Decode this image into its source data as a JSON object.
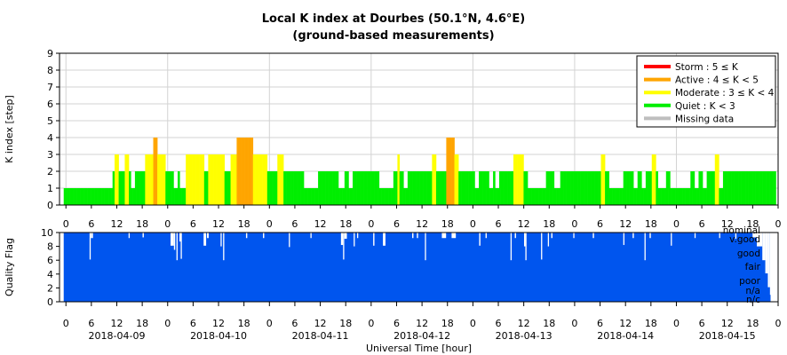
{
  "title": "Local K index at Dourbes (50.1°N, 4.6°E)",
  "subtitle": "(ground-based measurements)",
  "chart_data": [
    {
      "type": "bar",
      "panel": "k-index",
      "ylabel": "K index [step]",
      "ylim": [
        0,
        9
      ],
      "yticks": [
        "0",
        "1",
        "2",
        "3",
        "4",
        "5",
        "6",
        "7",
        "8",
        "9"
      ],
      "x_start": "2018-04-09T00:00",
      "x_span_hours": 168,
      "x_tick_labels": [
        "0",
        "6",
        "12",
        "18",
        "0",
        "6",
        "12",
        "18",
        "0",
        "6",
        "12",
        "18",
        "0",
        "6",
        "12",
        "18",
        "0",
        "6",
        "12",
        "18",
        "0",
        "6",
        "12",
        "18",
        "0",
        "6",
        "12",
        "18",
        "0"
      ],
      "interval_minutes": 15,
      "values": [
        [
          1,
          1,
          1,
          1,
          1,
          1,
          1,
          1,
          1,
          1,
          1,
          1,
          1,
          1,
          1,
          1,
          1,
          1,
          1,
          1,
          1,
          1,
          1,
          1,
          1,
          1,
          1,
          1,
          1,
          1,
          1,
          1,
          1,
          1,
          1,
          1,
          1,
          1,
          1,
          1,
          1,
          1,
          1,
          1,
          1,
          1,
          1,
          1,
          2,
          2,
          3,
          3,
          3,
          3,
          2,
          2,
          2,
          2,
          2,
          2,
          3,
          3,
          3,
          3,
          2,
          2,
          1,
          1,
          1,
          1,
          2,
          2,
          2,
          2,
          2,
          2,
          2,
          2,
          2,
          2,
          3,
          3,
          3,
          3,
          3,
          3,
          3,
          3,
          4,
          4,
          4,
          4,
          3,
          3,
          3,
          3,
          3,
          3,
          3,
          3
        ],
        [
          2,
          2,
          2,
          2,
          2,
          2,
          2,
          2,
          1,
          1,
          1,
          1,
          2,
          2,
          1,
          1,
          1,
          1,
          1,
          1,
          3,
          3,
          3,
          3,
          3,
          3,
          3,
          3,
          3,
          3,
          3,
          3,
          3,
          3,
          3,
          3,
          3,
          3,
          2,
          2,
          2,
          2,
          3,
          3,
          3,
          3,
          3,
          3,
          3,
          3,
          3,
          3,
          3,
          3,
          3,
          3,
          3,
          3,
          2,
          2,
          2,
          2,
          2,
          2,
          3,
          3,
          3,
          3,
          3,
          3,
          4,
          4,
          4,
          4,
          4,
          4,
          4,
          4,
          4,
          4,
          4,
          4,
          4,
          4,
          4,
          4,
          3,
          3,
          3,
          3,
          3,
          3,
          3,
          3,
          3,
          3,
          3,
          3,
          3,
          3
        ],
        [
          2,
          2,
          2,
          2,
          2,
          2,
          2,
          2,
          2,
          2,
          3,
          3,
          3,
          3,
          3,
          3,
          2,
          2,
          2,
          2,
          2,
          2,
          2,
          2,
          2,
          2,
          2,
          2,
          2,
          2,
          2,
          2,
          2,
          2,
          2,
          2,
          1,
          1,
          1,
          1,
          1,
          1,
          1,
          1,
          1,
          1,
          1,
          1,
          1,
          1,
          2,
          2,
          2,
          2,
          2,
          2,
          2,
          2,
          2,
          2,
          2,
          2,
          2,
          2,
          2,
          2,
          2,
          2,
          2,
          2,
          1,
          1,
          1,
          1,
          1,
          1,
          2,
          2,
          2,
          2,
          1,
          1,
          1,
          1,
          2,
          2,
          2,
          2,
          2,
          2,
          2,
          2,
          2,
          2,
          2,
          2,
          2,
          2,
          2,
          2
        ],
        [
          2,
          2,
          2,
          2,
          2,
          2,
          2,
          2,
          2,
          2,
          1,
          1,
          1,
          1,
          1,
          1,
          1,
          1,
          1,
          1,
          1,
          1,
          1,
          1,
          2,
          2,
          2,
          2,
          3,
          3,
          2,
          2,
          2,
          2,
          1,
          1,
          1,
          1,
          2,
          2,
          2,
          2,
          2,
          2,
          2,
          2,
          2,
          2,
          2,
          2,
          2,
          2,
          2,
          2,
          2,
          2,
          2,
          2,
          2,
          2,
          2,
          2,
          3,
          3,
          3,
          3,
          2,
          2,
          2,
          2,
          2,
          2,
          2,
          2,
          2,
          2,
          4,
          4,
          4,
          4,
          4,
          4,
          4,
          4,
          3,
          3,
          3,
          3,
          2,
          2,
          2,
          2,
          2,
          2,
          2,
          2,
          2,
          2,
          2,
          2
        ],
        [
          2,
          2,
          2,
          2,
          1,
          1,
          1,
          1,
          2,
          2,
          2,
          2,
          2,
          2,
          2,
          2,
          2,
          2,
          1,
          1,
          1,
          1,
          2,
          2,
          1,
          1,
          1,
          1,
          2,
          2,
          2,
          2,
          2,
          2,
          2,
          2,
          2,
          2,
          2,
          2,
          2,
          2,
          3,
          3,
          3,
          3,
          3,
          3,
          3,
          3,
          3,
          3,
          2,
          2,
          2,
          2,
          1,
          1,
          1,
          1,
          1,
          1,
          1,
          1,
          1,
          1,
          1,
          1,
          1,
          1,
          1,
          1,
          1,
          1,
          2,
          2,
          2,
          2,
          2,
          2,
          2,
          2,
          1,
          1,
          1,
          1,
          1,
          1,
          2,
          2,
          2,
          2,
          2,
          2,
          2,
          2,
          2,
          2,
          2,
          2
        ],
        [
          2,
          2,
          2,
          2,
          2,
          2,
          2,
          2,
          2,
          2,
          2,
          2,
          2,
          2,
          2,
          2,
          2,
          2,
          2,
          2,
          2,
          2,
          2,
          2,
          2,
          2,
          2,
          2,
          3,
          3,
          3,
          3,
          2,
          2,
          2,
          2,
          1,
          1,
          1,
          1,
          1,
          1,
          1,
          1,
          1,
          1,
          1,
          1,
          1,
          1,
          2,
          2,
          2,
          2,
          2,
          2,
          2,
          2,
          2,
          2,
          1,
          1,
          1,
          1,
          2,
          2,
          2,
          2,
          1,
          1,
          1,
          1,
          2,
          2,
          2,
          2,
          2,
          2,
          3,
          3,
          3,
          3,
          2,
          2,
          1,
          1,
          1,
          1,
          1,
          1,
          1,
          1,
          2,
          2,
          2,
          2,
          1,
          1,
          1,
          1
        ],
        [
          1,
          1,
          1,
          1,
          1,
          1,
          1,
          1,
          1,
          1,
          1,
          1,
          1,
          1,
          1,
          1,
          2,
          2,
          2,
          2,
          1,
          1,
          1,
          1,
          2,
          2,
          2,
          2,
          1,
          1,
          1,
          1,
          2,
          2,
          2,
          2,
          2,
          2,
          2,
          2,
          3,
          3,
          3,
          3,
          1,
          1,
          1,
          1,
          2,
          2,
          2,
          2,
          2,
          2,
          2,
          2,
          2,
          2,
          2,
          2,
          2,
          2,
          2,
          2,
          2,
          2,
          2,
          2,
          2,
          2,
          2,
          2,
          2,
          2,
          2,
          2,
          2,
          2,
          2,
          2,
          2,
          2,
          2,
          2,
          2,
          2,
          2,
          2,
          2,
          2,
          2,
          2,
          2,
          2,
          2,
          2,
          2,
          2,
          2,
          2
        ]
      ],
      "colors": {
        "storm": "#ff0000",
        "active": "#ffa500",
        "moderate": "#ffff00",
        "quiet": "#00ee00",
        "missing": "#bebebe"
      },
      "legend": [
        {
          "label": "Storm : 5 ≤ K",
          "color": "#ff0000"
        },
        {
          "label": "Active : 4 ≤ K < 5",
          "color": "#ffa500"
        },
        {
          "label": "Moderate : 3 ≤ K < 4",
          "color": "#ffff00"
        },
        {
          "label": "Quiet : K < 3",
          "color": "#00ee00"
        },
        {
          "label": "Missing data",
          "color": "#bebebe"
        }
      ],
      "legend_position": "top-right",
      "grid": true
    },
    {
      "type": "bar",
      "panel": "quality-flag",
      "ylabel": "Quality Flag",
      "ylim": [
        0,
        10
      ],
      "yticks": [
        "0",
        "2",
        "4",
        "6",
        "8",
        "10"
      ],
      "xlabel": "Universal Time [hour]",
      "x_tick_labels": [
        "0",
        "6",
        "12",
        "18",
        "0",
        "6",
        "12",
        "18",
        "0",
        "6",
        "12",
        "18",
        "0",
        "6",
        "12",
        "18",
        "0",
        "6",
        "12",
        "18",
        "0",
        "6",
        "12",
        "18",
        "0",
        "6",
        "12",
        "18",
        "0"
      ],
      "date_labels": [
        "2018-04-09",
        "2018-04-10",
        "2018-04-11",
        "2018-04-12",
        "2018-04-13",
        "2018-04-14",
        "2018-04-15"
      ],
      "flag_levels": [
        "nominal",
        "v.good",
        "good",
        "fair",
        "poor",
        "n/a",
        "n/c"
      ],
      "bar_color": "#0055ee",
      "baseline": 10,
      "interval_minutes": 15,
      "dips": [
        {
          "day": 0,
          "hour": 6.1,
          "width_h": 0.25,
          "value": 6.1
        },
        {
          "day": 0,
          "hour": 6.4,
          "width_h": 0.5,
          "value": 9.2
        },
        {
          "day": 0,
          "hour": 15.3,
          "width_h": 0.25,
          "value": 9.2
        },
        {
          "day": 0,
          "hour": 18.6,
          "width_h": 0.3,
          "value": 9.3
        },
        {
          "day": 1,
          "hour": 1.2,
          "width_h": 0.8,
          "value": 8.1
        },
        {
          "day": 1,
          "hour": 2.0,
          "width_h": 0.3,
          "value": 7.5
        },
        {
          "day": 1,
          "hour": 2.6,
          "width_h": 0.25,
          "value": 6.0
        },
        {
          "day": 1,
          "hour": 3.3,
          "width_h": 0.3,
          "value": 8.7
        },
        {
          "day": 1,
          "hour": 3.6,
          "width_h": 0.25,
          "value": 6.2
        },
        {
          "day": 1,
          "hour": 9.0,
          "width_h": 0.6,
          "value": 8.1
        },
        {
          "day": 1,
          "hour": 9.8,
          "width_h": 0.4,
          "value": 9.2
        },
        {
          "day": 1,
          "hour": 13.0,
          "width_h": 0.25,
          "value": 8.0
        },
        {
          "day": 1,
          "hour": 13.6,
          "width_h": 0.25,
          "value": 6.0
        },
        {
          "day": 1,
          "hour": 19.0,
          "width_h": 0.3,
          "value": 9.2
        },
        {
          "day": 1,
          "hour": 23.0,
          "width_h": 0.3,
          "value": 9.2
        },
        {
          "day": 2,
          "hour": 5.1,
          "width_h": 0.25,
          "value": 7.9
        },
        {
          "day": 2,
          "hour": 10.2,
          "width_h": 0.25,
          "value": 9.2
        },
        {
          "day": 2,
          "hour": 17.4,
          "width_h": 0.5,
          "value": 8.2
        },
        {
          "day": 2,
          "hour": 17.9,
          "width_h": 0.25,
          "value": 6.1
        },
        {
          "day": 2,
          "hour": 18.2,
          "width_h": 0.6,
          "value": 9.1
        },
        {
          "day": 2,
          "hour": 20.4,
          "width_h": 0.25,
          "value": 8.0
        },
        {
          "day": 2,
          "hour": 21.2,
          "width_h": 0.25,
          "value": 9.2
        },
        {
          "day": 3,
          "hour": 1.0,
          "width_h": 0.3,
          "value": 8.1
        },
        {
          "day": 3,
          "hour": 3.3,
          "width_h": 0.6,
          "value": 8.1
        },
        {
          "day": 3,
          "hour": 10.2,
          "width_h": 0.3,
          "value": 9.2
        },
        {
          "day": 3,
          "hour": 11.3,
          "width_h": 0.3,
          "value": 9.2
        },
        {
          "day": 3,
          "hour": 13.2,
          "width_h": 0.25,
          "value": 6.0
        },
        {
          "day": 3,
          "hour": 17.2,
          "width_h": 1.0,
          "value": 9.2
        },
        {
          "day": 3,
          "hour": 19.5,
          "width_h": 1.0,
          "value": 9.2
        },
        {
          "day": 4,
          "hour": 2.0,
          "width_h": 0.3,
          "value": 8.1
        },
        {
          "day": 4,
          "hour": 3.5,
          "width_h": 0.3,
          "value": 9.2
        },
        {
          "day": 4,
          "hour": 9.4,
          "width_h": 0.25,
          "value": 6.0
        },
        {
          "day": 4,
          "hour": 10.4,
          "width_h": 0.3,
          "value": 9.2
        },
        {
          "day": 4,
          "hour": 12.6,
          "width_h": 0.3,
          "value": 8.0
        },
        {
          "day": 4,
          "hour": 12.9,
          "width_h": 0.25,
          "value": 6.0
        },
        {
          "day": 4,
          "hour": 16.6,
          "width_h": 0.25,
          "value": 6.1
        },
        {
          "day": 4,
          "hour": 18.2,
          "width_h": 0.25,
          "value": 8.0
        },
        {
          "day": 4,
          "hour": 19.0,
          "width_h": 0.3,
          "value": 9.2
        },
        {
          "day": 5,
          "hour": 0.2,
          "width_h": 0.25,
          "value": 9.2
        },
        {
          "day": 5,
          "hour": 4.8,
          "width_h": 0.3,
          "value": 9.2
        },
        {
          "day": 5,
          "hour": 12.0,
          "width_h": 0.25,
          "value": 8.2
        },
        {
          "day": 5,
          "hour": 14.2,
          "width_h": 0.3,
          "value": 9.2
        },
        {
          "day": 5,
          "hour": 17.0,
          "width_h": 0.25,
          "value": 6.0
        },
        {
          "day": 5,
          "hour": 18.2,
          "width_h": 0.3,
          "value": 9.2
        },
        {
          "day": 5,
          "hour": 23.2,
          "width_h": 0.25,
          "value": 8.1
        },
        {
          "day": 6,
          "hour": 4.8,
          "width_h": 0.25,
          "value": 9.2
        },
        {
          "day": 6,
          "hour": 10.6,
          "width_h": 0.25,
          "value": 9.2
        },
        {
          "day": 6,
          "hour": 14.4,
          "width_h": 0.3,
          "value": 9.1
        },
        {
          "day": 6,
          "hour": 18.5,
          "width_h": 1.0,
          "value": 9.3
        },
        {
          "day": 6,
          "hour": 19.5,
          "width_h": 1.3,
          "value": 8.0
        },
        {
          "day": 6,
          "hour": 20.8,
          "width_h": 0.7,
          "value": 6.0
        },
        {
          "day": 6,
          "hour": 21.5,
          "width_h": 0.6,
          "value": 4.1
        },
        {
          "day": 6,
          "hour": 22.1,
          "width_h": 0.5,
          "value": 2.1
        },
        {
          "day": 6,
          "hour": 22.6,
          "width_h": 0.4,
          "value": 1.0
        }
      ]
    }
  ]
}
